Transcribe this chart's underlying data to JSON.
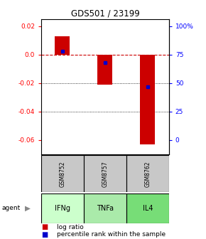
{
  "title": "GDS501 / 23199",
  "samples": [
    "GSM8752",
    "GSM8757",
    "GSM8762"
  ],
  "agents": [
    "IFNg",
    "TNFa",
    "IL4"
  ],
  "log_ratios": [
    0.013,
    -0.021,
    -0.063
  ],
  "percentile_ranks": [
    0.76,
    0.68,
    0.5
  ],
  "ylim": [
    -0.07,
    0.025
  ],
  "left_ticks": [
    0.02,
    0.0,
    -0.02,
    -0.04,
    -0.06
  ],
  "right_tick_labels": [
    "100%",
    "75",
    "50",
    "25",
    "0"
  ],
  "bar_color": "#cc0000",
  "percentile_color": "#0000cc",
  "zero_line_color": "#cc0000",
  "sample_bg": "#c8c8c8",
  "agent_colors": [
    "#ccffcc",
    "#aaeaaa",
    "#77dd77"
  ]
}
